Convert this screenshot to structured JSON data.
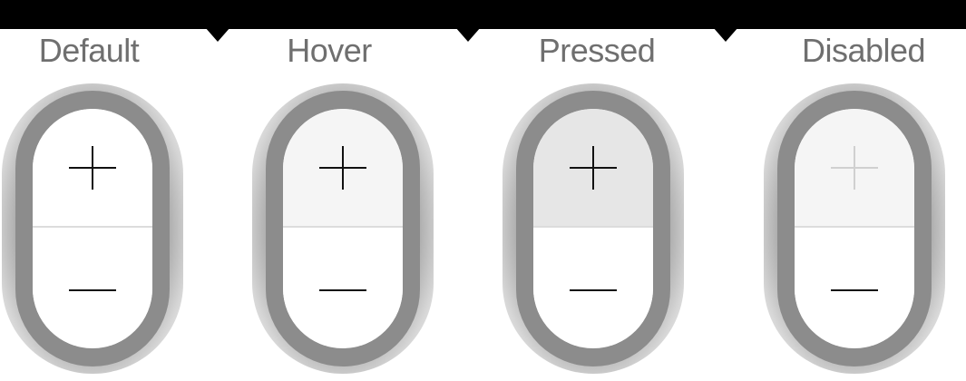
{
  "states": [
    {
      "label": "Default",
      "top_bg": "#ffffff",
      "bottom_bg": "#ffffff",
      "plus_color": "#111111",
      "minus_color": "#111111"
    },
    {
      "label": "Hover",
      "top_bg": "#f5f5f5",
      "bottom_bg": "#ffffff",
      "plus_color": "#111111",
      "minus_color": "#111111"
    },
    {
      "label": "Pressed",
      "top_bg": "#e6e6e6",
      "bottom_bg": "#ffffff",
      "plus_color": "#111111",
      "minus_color": "#111111"
    },
    {
      "label": "Disabled",
      "top_bg": "#f5f5f5",
      "bottom_bg": "#ffffff",
      "plus_color": "#d0d0d0",
      "minus_color": "#111111"
    }
  ],
  "icons": {
    "increment": "plus-icon",
    "decrement": "minus-icon"
  }
}
